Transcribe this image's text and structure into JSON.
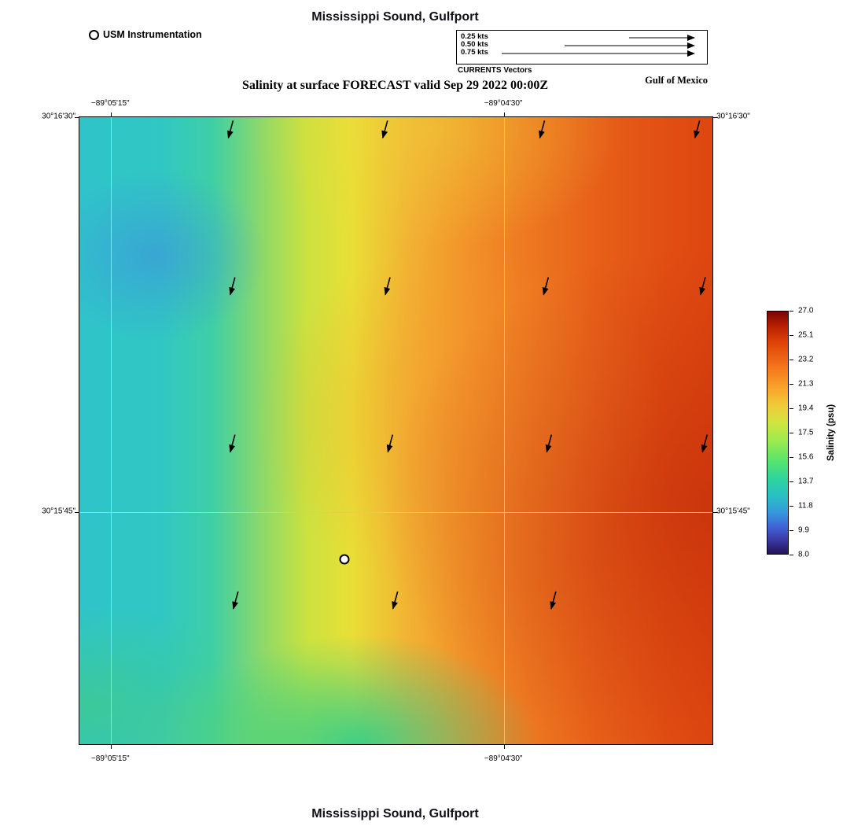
{
  "header": {
    "title": "Mississippi Sound, Gulfport",
    "station_legend_label": "USM Instrumentation",
    "currents_legend": {
      "title": "CURRENTS Vectors",
      "items": [
        {
          "label": "0.25 kts",
          "length": 93
        },
        {
          "label": "0.50 kts",
          "length": 175
        },
        {
          "label": "0.75 kts",
          "length": 255
        }
      ]
    },
    "region_label": "Gulf of Mexico",
    "subtitle": "Salinity at surface FORECAST valid Sep 29 2022 00:00Z"
  },
  "footer": {
    "title": "Mississippi Sound, Gulfport"
  },
  "chart_data": {
    "type": "heatmap",
    "title": "Salinity at surface FORECAST valid Sep 29 2022 00:00Z",
    "region": "Mississippi Sound, Gulfport",
    "variable": "Salinity (psu)",
    "valid_time": "Sep 29 2022 00:00Z",
    "lon_ticks": [
      {
        "label": "−89°05'15\"",
        "pos": 0.05
      },
      {
        "label": "−89°04'30\"",
        "pos": 0.671
      }
    ],
    "lat_ticks": [
      {
        "label": "30°16'30\"",
        "pos": 0.0
      },
      {
        "label": "30°15'45\"",
        "pos": 0.63
      }
    ],
    "colorbar": {
      "label": "Salinity (psu)",
      "min": 8.0,
      "max": 27.0,
      "ticks": [
        "27.0",
        "25.1",
        "23.2",
        "21.3",
        "19.4",
        "17.5",
        "15.6",
        "13.7",
        "11.8",
        "9.9",
        "8.0"
      ]
    },
    "field": {
      "description": "Surface salinity increases eastward: cyan/teal (~12-14 psu) along west edge, small fresher blue patch in northwest, yellow-green band (~17-20 psu) through the middle, orange to dark red (~23-27 psu) on the east side, green tongue (~15-16 psu) along the south edge.",
      "west_psu": 13,
      "mid_psu": 19,
      "east_psu": 27
    },
    "current_vectors": {
      "direction": "southward, tilted slightly west",
      "positions": [
        {
          "x": 0.239,
          "y": 0.023
        },
        {
          "x": 0.483,
          "y": 0.023
        },
        {
          "x": 0.731,
          "y": 0.023
        },
        {
          "x": 0.976,
          "y": 0.023
        },
        {
          "x": 0.242,
          "y": 0.273
        },
        {
          "x": 0.487,
          "y": 0.273
        },
        {
          "x": 0.737,
          "y": 0.273
        },
        {
          "x": 0.985,
          "y": 0.273
        },
        {
          "x": 0.242,
          "y": 0.524
        },
        {
          "x": 0.491,
          "y": 0.524
        },
        {
          "x": 0.742,
          "y": 0.524
        },
        {
          "x": 0.988,
          "y": 0.524
        },
        {
          "x": 0.247,
          "y": 0.774
        },
        {
          "x": 0.499,
          "y": 0.774
        },
        {
          "x": 0.749,
          "y": 0.774
        }
      ]
    },
    "station_marker": {
      "x": 0.419,
      "y": 0.705,
      "label": "USM Instrumentation"
    }
  }
}
